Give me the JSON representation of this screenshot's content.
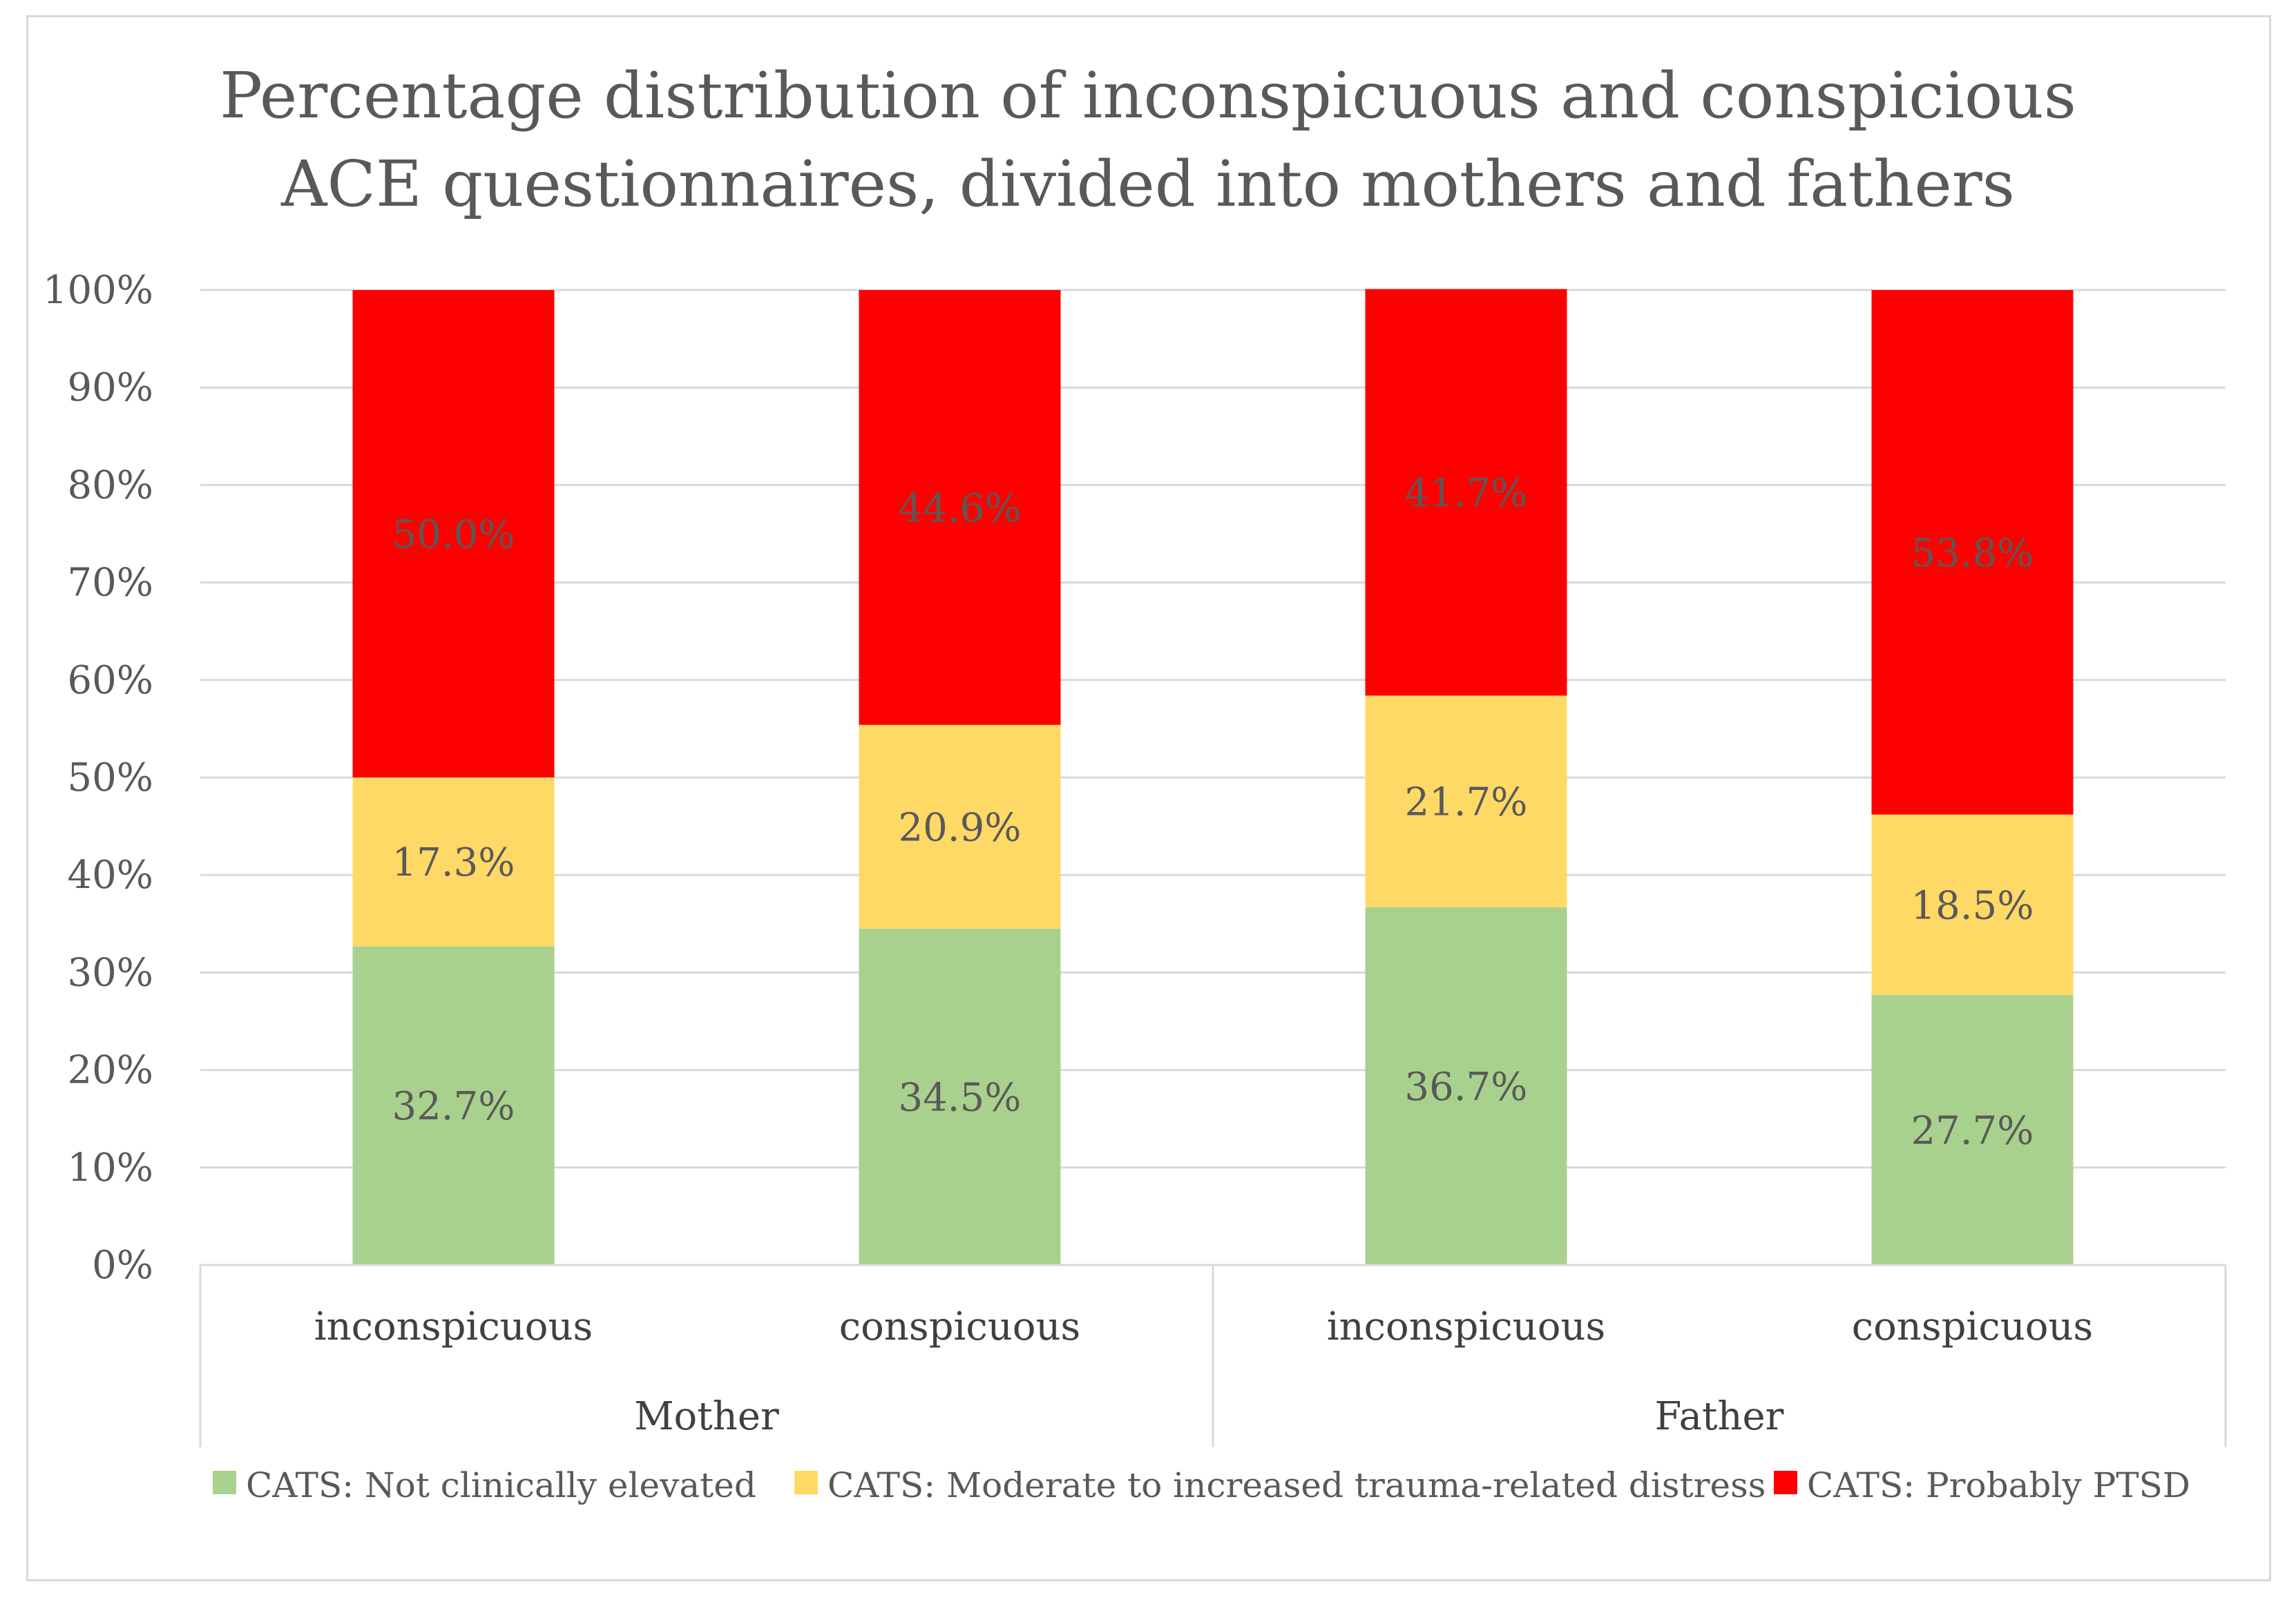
{
  "chart_data": {
    "type": "bar",
    "stacked": true,
    "title_lines": [
      "Percentage distribution of inconspicuous and conspicious",
      "ACE questionnaires, divided into mothers and fathers"
    ],
    "groups": [
      {
        "name": "Mother",
        "categories": [
          "inconspicuous",
          "conspicuous"
        ]
      },
      {
        "name": "Father",
        "categories": [
          "inconspicuous",
          "conspicuous"
        ]
      }
    ],
    "categories": [
      "inconspicuous",
      "conspicuous",
      "inconspicuous",
      "conspicuous"
    ],
    "series": [
      {
        "name": "CATS: Not clinically elevated",
        "color": "#a9d18e",
        "values": [
          32.7,
          34.5,
          36.7,
          27.7
        ],
        "labels": [
          "32.7%",
          "34.5%",
          "36.7%",
          "27.7%"
        ]
      },
      {
        "name": "CATS: Moderate to increased trauma-related distress",
        "color": "#ffd966",
        "values": [
          17.3,
          20.9,
          21.7,
          18.5
        ],
        "labels": [
          "17.3%",
          "20.9%",
          "21.7%",
          "18.5%"
        ]
      },
      {
        "name": "CATS: Probably PTSD",
        "color": "#ff0000",
        "values": [
          50.0,
          44.6,
          41.7,
          53.8
        ],
        "labels": [
          "50.0%",
          "44.6%",
          "41.7%",
          "53.8%"
        ]
      }
    ],
    "ylim": [
      0,
      100
    ],
    "yticks": [
      "0%",
      "10%",
      "20%",
      "30%",
      "40%",
      "50%",
      "60%",
      "70%",
      "80%",
      "90%",
      "100%"
    ],
    "grid": true,
    "legend_position": "bottom"
  }
}
